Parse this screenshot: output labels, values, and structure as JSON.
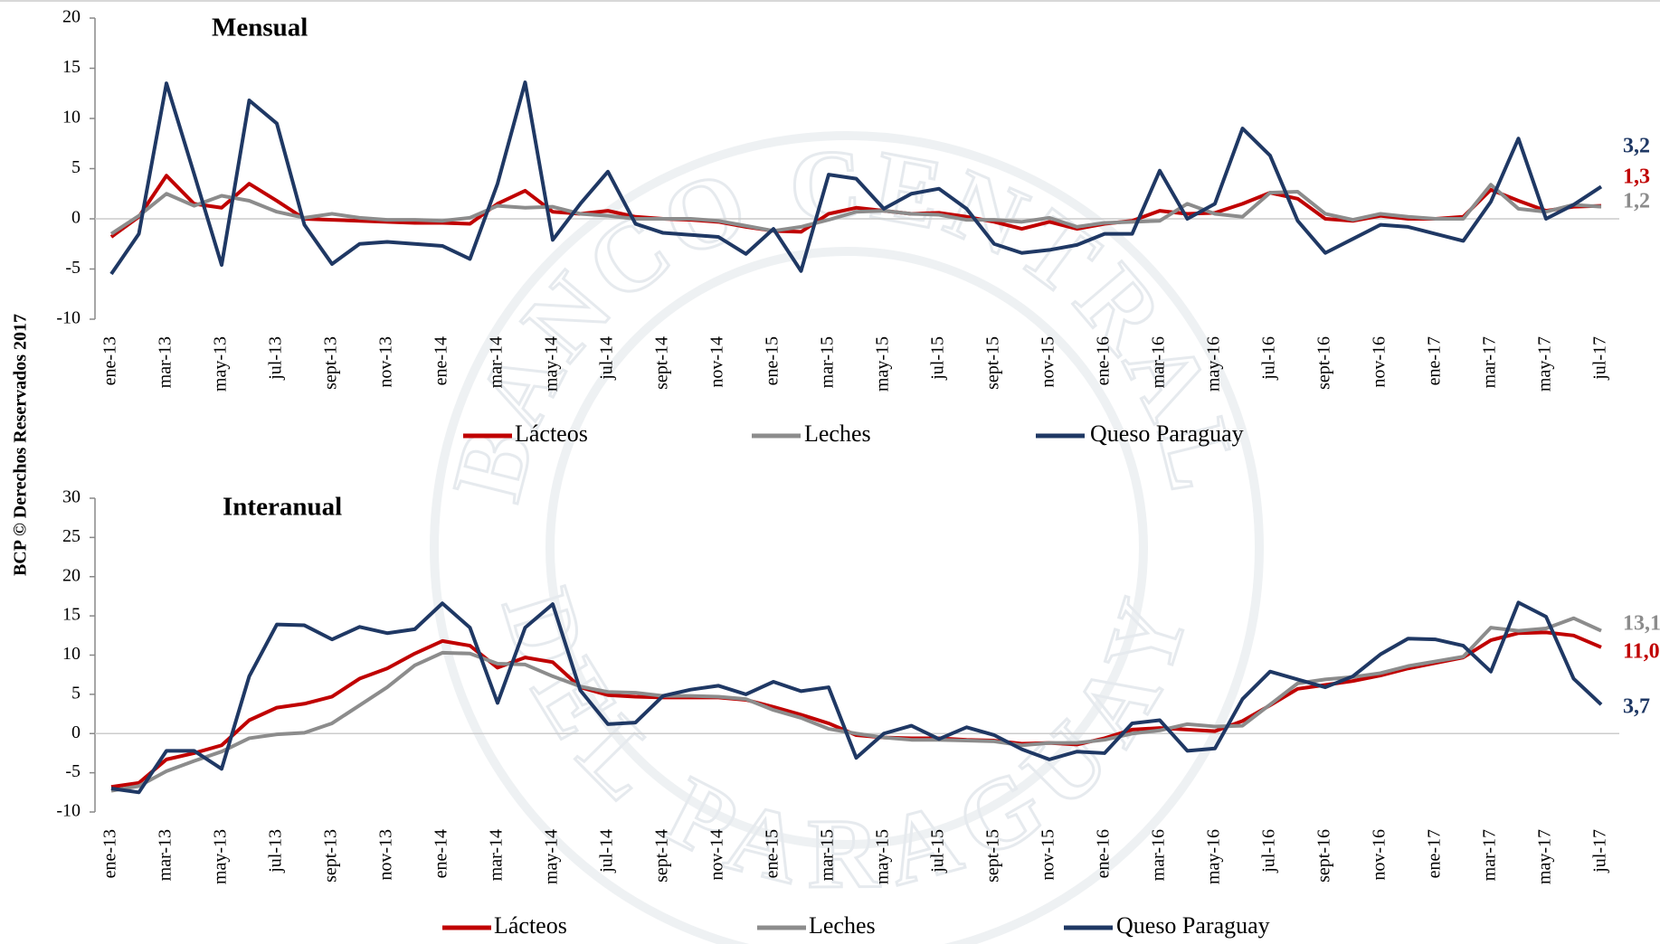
{
  "side_label": "BCP © Derechos Reservados 2017",
  "watermark": {
    "top": "BANCO CENTRAL",
    "bottom": "DEL PARAGUAY"
  },
  "chart_data": [
    {
      "type": "line",
      "title": "Mensual",
      "categories": [
        "ene-13",
        null,
        "mar-13",
        null,
        "may-13",
        null,
        "jul-13",
        null,
        "sept-13",
        null,
        "nov-13",
        null,
        "ene-14",
        null,
        "mar-14",
        null,
        "may-14",
        null,
        "jul-14",
        null,
        "sept-14",
        null,
        "nov-14",
        null,
        "ene-15",
        null,
        "mar-15",
        null,
        "may-15",
        null,
        "jul-15",
        null,
        "sept-15",
        null,
        "nov-15",
        null,
        "ene-16",
        null,
        "mar-16",
        null,
        "may-16",
        null,
        "jul-16",
        null,
        "sept-16",
        null,
        "nov-16",
        null,
        "ene-17",
        null,
        "mar-17",
        null,
        "may-17",
        null,
        "jul-17"
      ],
      "ylim": [
        -10,
        20
      ],
      "yticks": [
        -10,
        -5,
        0,
        5,
        10,
        15,
        20
      ],
      "series": [
        {
          "name": "Lácteos",
          "color": "#c00000",
          "values": [
            -1.8,
            0.2,
            4.3,
            1.5,
            1.1,
            3.5,
            1.8,
            0,
            -0.1,
            -0.2,
            -0.3,
            -0.4,
            -0.4,
            -0.5,
            1.5,
            2.8,
            0.7,
            0.5,
            0.8,
            0.2,
            0,
            -0.1,
            -0.3,
            -0.8,
            -1.2,
            -1.3,
            0.5,
            1.1,
            0.8,
            0.5,
            0.6,
            0.2,
            -0.3,
            -1.0,
            -0.3,
            -1.0,
            -0.5,
            -0.2,
            0.8,
            0.5,
            0.6,
            1.5,
            2.6,
            2.0,
            0,
            -0.2,
            0.3,
            0,
            0,
            0.2,
            2.9,
            1.8,
            0.8,
            1.2,
            1.3
          ],
          "value_labels": [
            null,
            null,
            null,
            null,
            null,
            null,
            null,
            null,
            null,
            null,
            null,
            null,
            null,
            null,
            null,
            null,
            null,
            null,
            null,
            null,
            null,
            null,
            null,
            null,
            null,
            null,
            null,
            null,
            null,
            null,
            null,
            null,
            null,
            null,
            null,
            null,
            null,
            null,
            null,
            null,
            null,
            null,
            null,
            null,
            null,
            null,
            null,
            null,
            null,
            null,
            null,
            null,
            null,
            null,
            "1,3"
          ]
        },
        {
          "name": "Leches",
          "color": "#8c8c8c",
          "values": [
            -1.5,
            0.3,
            2.5,
            1.3,
            2.3,
            1.8,
            0.7,
            0.1,
            0.5,
            0.1,
            -0.1,
            -0.1,
            -0.2,
            0.1,
            1.3,
            1.1,
            1.2,
            0.5,
            0.3,
            0,
            0,
            0,
            -0.2,
            -0.7,
            -1.2,
            -0.8,
            -0.1,
            0.7,
            0.8,
            0.5,
            0.4,
            -0.1,
            -0.1,
            -0.3,
            0.1,
            -0.8,
            -0.4,
            -0.3,
            -0.2,
            1.5,
            0.5,
            0.2,
            2.6,
            2.7,
            0.5,
            -0.1,
            0.5,
            0.2,
            0,
            0,
            3.4,
            1.0,
            0.7,
            1.4,
            1.2
          ],
          "value_labels": [
            null,
            null,
            null,
            null,
            null,
            null,
            null,
            null,
            null,
            null,
            null,
            null,
            null,
            null,
            null,
            null,
            null,
            null,
            null,
            null,
            null,
            null,
            null,
            null,
            null,
            null,
            null,
            null,
            null,
            null,
            null,
            null,
            null,
            null,
            null,
            null,
            null,
            null,
            null,
            null,
            null,
            null,
            null,
            null,
            null,
            null,
            null,
            null,
            null,
            null,
            null,
            null,
            null,
            null,
            "1,2"
          ]
        },
        {
          "name": "Queso Paraguay",
          "color": "#1f3864",
          "values": [
            -5.5,
            -1.5,
            13.5,
            4.5,
            -4.6,
            11.8,
            9.5,
            -0.6,
            -4.5,
            -2.5,
            -2.3,
            -2.5,
            -2.7,
            -4.0,
            3.5,
            13.6,
            -2.1,
            1.5,
            4.7,
            -0.5,
            -1.4,
            -1.6,
            -1.8,
            -3.5,
            -1.0,
            -5.2,
            4.4,
            4.0,
            1.0,
            2.5,
            3.0,
            1.0,
            -2.5,
            -3.4,
            -3.1,
            -2.6,
            -1.5,
            -1.5,
            4.8,
            0,
            1.5,
            9.0,
            6.3,
            -0.2,
            -3.4,
            -2.0,
            -0.6,
            -0.8,
            -1.5,
            -2.2,
            1.7,
            8.0,
            0,
            1.4,
            3.2
          ],
          "value_labels": [
            null,
            null,
            null,
            null,
            null,
            null,
            null,
            null,
            null,
            null,
            null,
            null,
            null,
            null,
            null,
            null,
            null,
            null,
            null,
            null,
            null,
            null,
            null,
            null,
            null,
            null,
            null,
            null,
            null,
            null,
            null,
            null,
            null,
            null,
            null,
            null,
            null,
            null,
            null,
            null,
            null,
            null,
            null,
            null,
            null,
            null,
            null,
            null,
            null,
            null,
            null,
            null,
            null,
            null,
            "3,2"
          ]
        }
      ]
    },
    {
      "type": "line",
      "title": "Interanual",
      "categories": [
        "ene-13",
        null,
        "mar-13",
        null,
        "may-13",
        null,
        "jul-13",
        null,
        "sept-13",
        null,
        "nov-13",
        null,
        "ene-14",
        null,
        "mar-14",
        null,
        "may-14",
        null,
        "jul-14",
        null,
        "sept-14",
        null,
        "nov-14",
        null,
        "ene-15",
        null,
        "mar-15",
        null,
        "may-15",
        null,
        "jul-15",
        null,
        "sept-15",
        null,
        "nov-15",
        null,
        "ene-16",
        null,
        "mar-16",
        null,
        "may-16",
        null,
        "jul-16",
        null,
        "sept-16",
        null,
        "nov-16",
        null,
        "ene-17",
        null,
        "mar-17",
        null,
        "may-17",
        null,
        "jul-17"
      ],
      "ylim": [
        -10,
        30
      ],
      "yticks": [
        -10,
        -5,
        0,
        5,
        10,
        15,
        20,
        25,
        30
      ],
      "series": [
        {
          "name": "Lácteos",
          "color": "#c00000",
          "values": [
            -6.8,
            -6.3,
            -3.3,
            -2.5,
            -1.5,
            1.7,
            3.3,
            3.8,
            4.7,
            7.0,
            8.3,
            10.2,
            11.8,
            11.2,
            8.4,
            9.7,
            9.1,
            5.9,
            4.9,
            4.7,
            4.6,
            4.6,
            4.6,
            4.3,
            3.4,
            2.4,
            1.3,
            -0.2,
            -0.5,
            -0.6,
            -0.6,
            -0.8,
            -0.9,
            -1.3,
            -1.2,
            -1.4,
            -0.6,
            0.5,
            0.7,
            0.5,
            0.3,
            1.6,
            3.6,
            5.7,
            6.2,
            6.7,
            7.4,
            8.3,
            9.0,
            9.7,
            11.9,
            12.8,
            12.9,
            12.5,
            11.0
          ],
          "value_labels": [
            null,
            null,
            null,
            null,
            null,
            null,
            null,
            null,
            null,
            null,
            null,
            null,
            null,
            null,
            null,
            null,
            null,
            null,
            null,
            null,
            null,
            null,
            null,
            null,
            null,
            null,
            null,
            null,
            null,
            null,
            null,
            null,
            null,
            null,
            null,
            null,
            null,
            null,
            null,
            null,
            null,
            null,
            null,
            null,
            null,
            null,
            null,
            null,
            null,
            null,
            null,
            null,
            null,
            null,
            "11,0"
          ]
        },
        {
          "name": "Leches",
          "color": "#8c8c8c",
          "values": [
            -7.3,
            -6.7,
            -4.8,
            -3.5,
            -2.3,
            -0.6,
            -0.1,
            0.1,
            1.3,
            3.6,
            5.9,
            8.7,
            10.3,
            10.2,
            8.9,
            8.8,
            7.3,
            6.0,
            5.3,
            5.2,
            4.8,
            4.8,
            4.7,
            4.4,
            3.0,
            2.0,
            0.6,
            0,
            -0.5,
            -0.8,
            -0.8,
            -0.9,
            -1.0,
            -1.5,
            -1.2,
            -1.2,
            -0.8,
            0,
            0.4,
            1.2,
            0.9,
            1.0,
            3.7,
            6.4,
            6.9,
            7.2,
            7.7,
            8.6,
            9.2,
            9.8,
            13.5,
            13.1,
            13.4,
            14.7,
            13.1
          ],
          "value_labels": [
            null,
            null,
            null,
            null,
            null,
            null,
            null,
            null,
            null,
            null,
            null,
            null,
            null,
            null,
            null,
            null,
            null,
            null,
            null,
            null,
            null,
            null,
            null,
            null,
            null,
            null,
            null,
            null,
            null,
            null,
            null,
            null,
            null,
            null,
            null,
            null,
            null,
            null,
            null,
            null,
            null,
            null,
            null,
            null,
            null,
            null,
            null,
            null,
            null,
            null,
            null,
            null,
            null,
            null,
            "13,1"
          ]
        },
        {
          "name": "Queso Paraguay",
          "color": "#1f3864",
          "values": [
            -7.0,
            -7.5,
            -2.2,
            -2.2,
            -4.5,
            7.3,
            13.9,
            13.8,
            12.0,
            13.6,
            12.8,
            13.3,
            16.6,
            13.5,
            3.9,
            13.5,
            16.5,
            5.5,
            1.2,
            1.4,
            4.8,
            5.6,
            6.1,
            5.0,
            6.6,
            5.4,
            5.9,
            -3.1,
            0,
            1.0,
            -0.7,
            0.8,
            -0.2,
            -2.0,
            -3.3,
            -2.3,
            -2.5,
            1.3,
            1.7,
            -2.2,
            -1.9,
            4.4,
            7.9,
            6.9,
            5.9,
            7.3,
            10.1,
            12.1,
            12.0,
            11.2,
            7.9,
            16.7,
            14.9,
            7.0,
            3.7
          ],
          "value_labels": [
            null,
            null,
            null,
            null,
            null,
            null,
            null,
            null,
            null,
            null,
            null,
            null,
            null,
            null,
            null,
            null,
            null,
            null,
            null,
            null,
            null,
            null,
            null,
            null,
            null,
            null,
            null,
            null,
            null,
            null,
            null,
            null,
            null,
            null,
            null,
            null,
            null,
            null,
            null,
            null,
            null,
            null,
            null,
            null,
            null,
            null,
            null,
            null,
            null,
            null,
            null,
            null,
            null,
            null,
            "3,7"
          ]
        }
      ]
    }
  ]
}
